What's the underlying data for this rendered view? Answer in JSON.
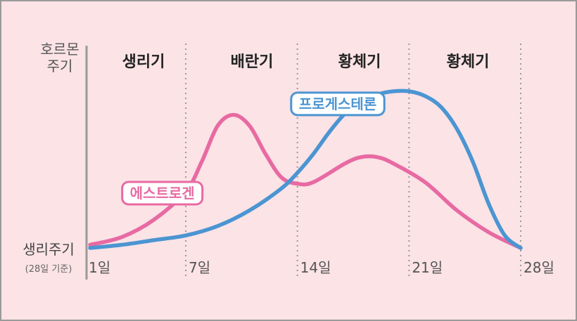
{
  "chart_data": {
    "type": "line",
    "ylabel": [
      "호르몬",
      "주기"
    ],
    "xlabel": [
      "생리주기",
      "(28일 기준)"
    ],
    "phases": [
      "생리기",
      "배란기",
      "황체기",
      "황체기"
    ],
    "x_ticks": [
      {
        "day": 1,
        "label": "1일"
      },
      {
        "day": 7,
        "label": "7일"
      },
      {
        "day": 14,
        "label": "14일"
      },
      {
        "day": 21,
        "label": "21일"
      },
      {
        "day": 28,
        "label": "28일"
      }
    ],
    "xlim": [
      1,
      28
    ],
    "ylim": [
      0,
      100
    ],
    "series": [
      {
        "name": "에스트로겐",
        "color": "#e86aa2",
        "points": [
          [
            1,
            2
          ],
          [
            3,
            7
          ],
          [
            5,
            18
          ],
          [
            7,
            36
          ],
          [
            8,
            55
          ],
          [
            9,
            78
          ],
          [
            10,
            85
          ],
          [
            11,
            78
          ],
          [
            12,
            60
          ],
          [
            13,
            45
          ],
          [
            14,
            41
          ],
          [
            15,
            42
          ],
          [
            17,
            54
          ],
          [
            18,
            58
          ],
          [
            19,
            58
          ],
          [
            20,
            54
          ],
          [
            22,
            42
          ],
          [
            24,
            24
          ],
          [
            26,
            10
          ],
          [
            28,
            0
          ]
        ]
      },
      {
        "name": "프로게스테론",
        "color": "#4b95d2",
        "points": [
          [
            1,
            0
          ],
          [
            3,
            2
          ],
          [
            5,
            5
          ],
          [
            7,
            8
          ],
          [
            9,
            14
          ],
          [
            11,
            24
          ],
          [
            13,
            38
          ],
          [
            14,
            48
          ],
          [
            15,
            60
          ],
          [
            16,
            74
          ],
          [
            17,
            86
          ],
          [
            18,
            94
          ],
          [
            19,
            98
          ],
          [
            20,
            100
          ],
          [
            21,
            100
          ],
          [
            22,
            97
          ],
          [
            23,
            90
          ],
          [
            24,
            76
          ],
          [
            25,
            55
          ],
          [
            26,
            28
          ],
          [
            27,
            8
          ],
          [
            28,
            0
          ]
        ]
      }
    ]
  }
}
